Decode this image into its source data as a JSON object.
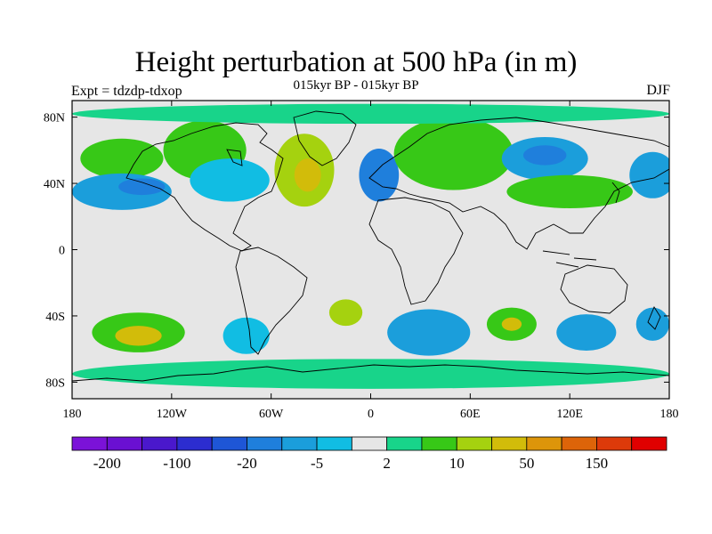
{
  "header": {
    "title": "Height perturbation at 500 hPa (in m)",
    "subtitle": "015kyr BP - 015kyr BP",
    "left_label": "Expt = tdzdp-tdxop",
    "right_label": "DJF"
  },
  "chart_data": {
    "type": "heatmap",
    "title": "Height perturbation at 500 hPa (in m)",
    "subtitle": "015kyr BP - 015kyr BP",
    "variable": "500 hPa geopotential height perturbation",
    "units": "m",
    "season": "DJF",
    "experiment": "tdzdp-tdxop",
    "x_ticks": [
      {
        "value": -180,
        "label": "180"
      },
      {
        "value": -120,
        "label": "120W"
      },
      {
        "value": -60,
        "label": "60W"
      },
      {
        "value": 0,
        "label": "0"
      },
      {
        "value": 60,
        "label": "60E"
      },
      {
        "value": 120,
        "label": "120E"
      },
      {
        "value": 180,
        "label": "180"
      }
    ],
    "y_ticks": [
      {
        "value": 80,
        "label": "80N"
      },
      {
        "value": 40,
        "label": "40N"
      },
      {
        "value": 0,
        "label": "0"
      },
      {
        "value": -40,
        "label": "40S"
      },
      {
        "value": -80,
        "label": "80S"
      }
    ],
    "xlim": [
      -180,
      180
    ],
    "ylim": [
      -90,
      90
    ],
    "colorbar": {
      "colors": [
        "#7b12d8",
        "#6a10d2",
        "#4a18cc",
        "#2c2dd0",
        "#1e56d6",
        "#1f7fdc",
        "#1b9edb",
        "#11bde3",
        "#e6e6e6",
        "#18d48a",
        "#37c817",
        "#a5d20f",
        "#d2bc0a",
        "#dd950a",
        "#dd6409",
        "#dd3a0a",
        "#e00000"
      ],
      "labels": [
        {
          "boundary": 1,
          "text": "-200"
        },
        {
          "boundary": 3,
          "text": "-100"
        },
        {
          "boundary": 5,
          "text": "-20"
        },
        {
          "boundary": 7,
          "text": "-5"
        },
        {
          "boundary": 9,
          "text": "2"
        },
        {
          "boundary": 11,
          "text": "10"
        },
        {
          "boundary": 13,
          "text": "50"
        },
        {
          "boundary": 15,
          "text": "150"
        }
      ]
    },
    "anomalies": [
      {
        "name": "NE Pacific high",
        "lon": -150,
        "lat": 55,
        "rx": 25,
        "ry": 12,
        "level": 10
      },
      {
        "name": "N Pacific low",
        "lon": -150,
        "lat": 35,
        "rx": 30,
        "ry": 11,
        "level": 6
      },
      {
        "name": "N Pacific deep low",
        "lon": -138,
        "lat": 38,
        "rx": 14,
        "ry": 5,
        "level": 5
      },
      {
        "name": "Alaska-Canada high",
        "lon": -100,
        "lat": 60,
        "rx": 25,
        "ry": 18,
        "level": 10
      },
      {
        "name": "N America low",
        "lon": -85,
        "lat": 42,
        "rx": 24,
        "ry": 13,
        "level": 7
      },
      {
        "name": "Greenland-Atlantic high",
        "lon": -40,
        "lat": 48,
        "rx": 18,
        "ry": 22,
        "level": 11
      },
      {
        "name": "Greenland core",
        "lon": -38,
        "lat": 45,
        "rx": 8,
        "ry": 10,
        "level": 12
      },
      {
        "name": "Europe low",
        "lon": 5,
        "lat": 45,
        "rx": 12,
        "ry": 16,
        "level": 5
      },
      {
        "name": "Scandinavia high",
        "lon": 50,
        "lat": 58,
        "rx": 36,
        "ry": 22,
        "level": 10
      },
      {
        "name": "Siberia low",
        "lon": 105,
        "lat": 55,
        "rx": 26,
        "ry": 13,
        "level": 6
      },
      {
        "name": "Siberia deep low",
        "lon": 105,
        "lat": 57,
        "rx": 13,
        "ry": 6,
        "level": 5
      },
      {
        "name": "C Asia high",
        "lon": 120,
        "lat": 35,
        "rx": 38,
        "ry": 10,
        "level": 10
      },
      {
        "name": "N Pacific W low",
        "lon": 170,
        "lat": 45,
        "rx": 14,
        "ry": 14,
        "level": 6
      },
      {
        "name": "S Pacific high",
        "lon": -140,
        "lat": -50,
        "rx": 28,
        "ry": 12,
        "level": 10
      },
      {
        "name": "S Pacific high core",
        "lon": -140,
        "lat": -52,
        "rx": 14,
        "ry": 6,
        "level": 12
      },
      {
        "name": "SE Pacific low",
        "lon": -75,
        "lat": -52,
        "rx": 14,
        "ry": 11,
        "level": 7
      },
      {
        "name": "S Atlantic high",
        "lon": -15,
        "lat": -38,
        "rx": 10,
        "ry": 8,
        "level": 11
      },
      {
        "name": "S Indian low",
        "lon": 35,
        "lat": -50,
        "rx": 25,
        "ry": 14,
        "level": 6
      },
      {
        "name": "S Indian high",
        "lon": 85,
        "lat": -45,
        "rx": 15,
        "ry": 10,
        "level": 10
      },
      {
        "name": "S Indian high core",
        "lon": 85,
        "lat": -45,
        "rx": 6,
        "ry": 4,
        "level": 12
      },
      {
        "name": "SW Pacific low",
        "lon": 130,
        "lat": -50,
        "rx": 18,
        "ry": 11,
        "level": 6
      },
      {
        "name": "Tasman low",
        "lon": 170,
        "lat": -45,
        "rx": 10,
        "ry": 10,
        "level": 6
      },
      {
        "name": "Antarctic band",
        "lon": 0,
        "lat": -75,
        "rx": 180,
        "ry": 9,
        "level": 9
      },
      {
        "name": "Arctic band",
        "lon": 0,
        "lat": 82,
        "rx": 180,
        "ry": 6,
        "level": 9
      }
    ]
  }
}
